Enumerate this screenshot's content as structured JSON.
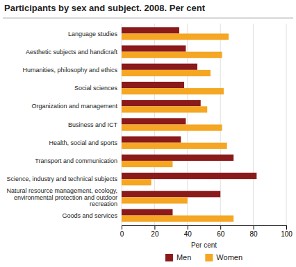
{
  "chart_data": {
    "type": "bar",
    "orientation": "horizontal",
    "title": "Participants by sex and subject. 2008. Per cent",
    "categories": [
      "Language studies",
      "Aesthetic subjects and handicraft",
      "Humanities, philosophy and ethics",
      "Social sciences",
      "Organization and management",
      "Business and ICT",
      "Health, social and sports",
      "Transport and communication",
      "Science, industry and technical subjects",
      "Natural resource management, ecology,\nenvironmental protection and outdoor\nrecreation",
      "Goods and services"
    ],
    "series": [
      {
        "name": "Men",
        "color": "#8B1A1A",
        "values": [
          35,
          39,
          46,
          38,
          48,
          39,
          36,
          68,
          82,
          60,
          31
        ]
      },
      {
        "name": "Women",
        "color": "#F5A623",
        "values": [
          65,
          61,
          54,
          62,
          52,
          61,
          64,
          31,
          18,
          40,
          68
        ]
      }
    ],
    "xlabel": "Per cent",
    "xlim": [
      0,
      100
    ],
    "xticks": [
      0,
      20,
      40,
      60,
      80,
      100
    ],
    "grid": true,
    "legend": "bottom"
  }
}
